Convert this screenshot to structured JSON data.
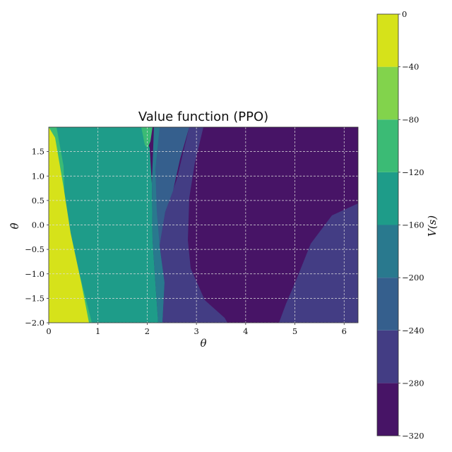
{
  "chart_data": {
    "type": "contour",
    "title": "Value function (PPO)",
    "xlabel": "θ",
    "ylabel": "θ̇",
    "xlim": [
      0,
      6.2832
    ],
    "ylim": [
      -2.0,
      2.0
    ],
    "x_ticks": [
      0,
      1,
      2,
      3,
      4,
      5,
      6
    ],
    "y_ticks": [
      -2.0,
      -1.5,
      -1.0,
      -0.5,
      0.0,
      0.5,
      1.0,
      1.5
    ],
    "y_tick_labels": [
      "−2.0",
      "−1.5",
      "−1.0",
      "−0.5",
      "0.0",
      "0.5",
      "1.0",
      "1.5"
    ],
    "grid": true,
    "colorbar": {
      "label": "V(s)",
      "levels": [
        -320,
        -280,
        -240,
        -200,
        -160,
        -120,
        -80,
        -40,
        0
      ],
      "tick_labels": [
        "−320",
        "−280",
        "−240",
        "−200",
        "−160",
        "−120",
        "−80",
        "−40",
        "0"
      ],
      "colors": [
        "#471466",
        "#433d84",
        "#355f8d",
        "#29798e",
        "#1e9c89",
        "#3bbb75",
        "#82d34c",
        "#d6e21a"
      ]
    },
    "regions": [
      {
        "value_range": [
          -320,
          -280
        ],
        "color": "#471466",
        "area": "θ ≈ 3–6.28 upper region and central basin θ ≈ 2.8–4.4"
      },
      {
        "value_range": [
          -280,
          -240
        ],
        "color": "#433d84",
        "area": "θ ≈ 2.3–2.9 band and lower-right θ ≈ 4.4–6.28"
      },
      {
        "value_range": [
          -240,
          -200
        ],
        "color": "#355f8d",
        "area": "narrow band θ ≈ 2.2–2.7, upper half"
      },
      {
        "value_range": [
          -200,
          -160
        ],
        "color": "#29798e",
        "area": "thin edge at θ ≈ 2.2"
      },
      {
        "value_range": [
          -160,
          -120
        ],
        "color": "#1e9c89",
        "area": "θ ≈ 0.2–2.2"
      },
      {
        "value_range": [
          -120,
          -80
        ],
        "color": "#3bbb75",
        "area": "thin strips near diagonal and near θ ≈ 1.9–2.1 top"
      },
      {
        "value_range": [
          -40,
          0
        ],
        "color": "#d6e21a",
        "area": "diagonal wedge near θ = 0"
      }
    ]
  }
}
